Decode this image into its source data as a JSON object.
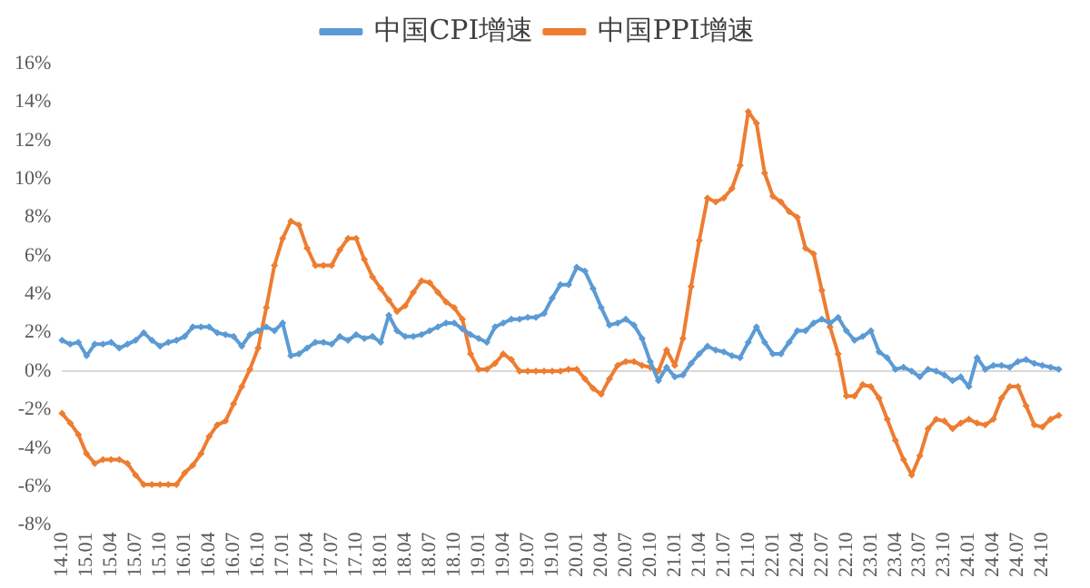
{
  "chart_data": {
    "type": "line",
    "categories": [
      "14.10",
      null,
      null,
      "15.01",
      null,
      null,
      "15.04",
      null,
      null,
      "15.07",
      null,
      null,
      "15.10",
      null,
      null,
      "16.01",
      null,
      null,
      "16.04",
      null,
      null,
      "16.07",
      null,
      null,
      "16.10",
      null,
      null,
      "17.01",
      null,
      null,
      "17.04",
      null,
      null,
      "17.07",
      null,
      null,
      "17.10",
      null,
      null,
      "18.01",
      null,
      null,
      "18.04",
      null,
      null,
      "18.07",
      null,
      null,
      "18.10",
      null,
      null,
      "19.01",
      null,
      null,
      "19.04",
      null,
      null,
      "19.07",
      null,
      null,
      "19.10",
      null,
      null,
      "20.01",
      null,
      null,
      "20.04",
      null,
      null,
      "20.07",
      null,
      null,
      "20.10",
      null,
      null,
      "21.01",
      null,
      null,
      "21.04",
      null,
      null,
      "21.07",
      null,
      null,
      "21.10",
      null,
      null,
      "22.01",
      null,
      null,
      "22.04",
      null,
      null,
      "22.07",
      null,
      null,
      "22.10",
      null,
      null,
      "23.01",
      null,
      null,
      "23.04",
      null,
      null,
      "23.07",
      null,
      null,
      "23.10",
      null,
      null,
      "24.01",
      null,
      null,
      "24.04",
      null,
      null,
      "24.07",
      null,
      null,
      "24.10",
      null,
      null
    ],
    "series": [
      {
        "name": "中国CPI增速",
        "color": "#5b9bd5",
        "values": [
          1.6,
          1.4,
          1.5,
          0.8,
          1.4,
          1.4,
          1.5,
          1.2,
          1.4,
          1.6,
          2.0,
          1.6,
          1.3,
          1.5,
          1.6,
          1.8,
          2.3,
          2.3,
          2.3,
          2.0,
          1.9,
          1.8,
          1.3,
          1.9,
          2.1,
          2.3,
          2.1,
          2.5,
          0.8,
          0.9,
          1.2,
          1.5,
          1.5,
          1.4,
          1.8,
          1.6,
          1.9,
          1.7,
          1.8,
          1.5,
          2.9,
          2.1,
          1.8,
          1.8,
          1.9,
          2.1,
          2.3,
          2.5,
          2.5,
          2.2,
          1.9,
          1.7,
          1.5,
          2.3,
          2.5,
          2.7,
          2.7,
          2.8,
          2.8,
          3.0,
          3.8,
          4.5,
          4.5,
          5.4,
          5.2,
          4.3,
          3.3,
          2.4,
          2.5,
          2.7,
          2.4,
          1.7,
          0.5,
          -0.5,
          0.2,
          -0.3,
          -0.2,
          0.4,
          0.9,
          1.3,
          1.1,
          1.0,
          0.8,
          0.7,
          1.5,
          2.3,
          1.5,
          0.9,
          0.9,
          1.5,
          2.1,
          2.1,
          2.5,
          2.7,
          2.5,
          2.8,
          2.1,
          1.6,
          1.8,
          2.1,
          1.0,
          0.7,
          0.1,
          0.2,
          0.0,
          -0.3,
          0.1,
          0.0,
          -0.2,
          -0.5,
          -0.3,
          -0.8,
          0.7,
          0.1,
          0.3,
          0.3,
          0.2,
          0.5,
          0.6,
          0.4,
          0.3,
          0.2,
          0.1
        ]
      },
      {
        "name": "中国PPI增速",
        "color": "#ed7d31",
        "values": [
          -2.2,
          -2.7,
          -3.3,
          -4.3,
          -4.8,
          -4.6,
          -4.6,
          -4.6,
          -4.8,
          -5.4,
          -5.9,
          -5.9,
          -5.9,
          -5.9,
          -5.9,
          -5.3,
          -4.9,
          -4.3,
          -3.4,
          -2.8,
          -2.6,
          -1.7,
          -0.8,
          0.1,
          1.2,
          3.3,
          5.5,
          6.9,
          7.8,
          7.6,
          6.4,
          5.5,
          5.5,
          5.5,
          6.3,
          6.9,
          6.9,
          5.8,
          4.9,
          4.3,
          3.7,
          3.1,
          3.4,
          4.1,
          4.7,
          4.6,
          4.1,
          3.6,
          3.3,
          2.7,
          0.9,
          0.1,
          0.1,
          0.4,
          0.9,
          0.6,
          0.0,
          0.0,
          0.0,
          0.0,
          0.0,
          0.0,
          0.1,
          0.1,
          -0.4,
          -0.9,
          -1.2,
          -0.4,
          0.3,
          0.5,
          0.5,
          0.3,
          0.2,
          0.0,
          1.1,
          0.3,
          1.7,
          4.4,
          6.8,
          9.0,
          8.8,
          9.0,
          9.5,
          10.7,
          13.5,
          12.9,
          10.3,
          9.1,
          8.8,
          8.3,
          8.0,
          6.4,
          6.1,
          4.2,
          2.3,
          0.9,
          -1.3,
          -1.3,
          -0.7,
          -0.8,
          -1.4,
          -2.5,
          -3.6,
          -4.6,
          -5.4,
          -4.4,
          -3.0,
          -2.5,
          -2.6,
          -3.0,
          -2.7,
          -2.5,
          -2.7,
          -2.8,
          -2.5,
          -1.4,
          -0.8,
          -0.8,
          -1.8,
          -2.8,
          -2.9,
          -2.5,
          -2.3
        ]
      }
    ],
    "ylim": [
      -8,
      16
    ],
    "yticks": [
      {
        "value": -8,
        "label": "-8%"
      },
      {
        "value": -6,
        "label": "-6%"
      },
      {
        "value": -4,
        "label": "-4%"
      },
      {
        "value": -2,
        "label": "-2%"
      },
      {
        "value": 0,
        "label": "0%"
      },
      {
        "value": 2,
        "label": "2%"
      },
      {
        "value": 4,
        "label": "4%"
      },
      {
        "value": 6,
        "label": "6%"
      },
      {
        "value": 8,
        "label": "8%"
      },
      {
        "value": 10,
        "label": "10%"
      },
      {
        "value": 12,
        "label": "12%"
      },
      {
        "value": 14,
        "label": "14%"
      },
      {
        "value": 16,
        "label": "16%"
      }
    ],
    "ref_lines": [
      {
        "axis": "y",
        "value": 0,
        "color": "#d9d9d9"
      }
    ],
    "grid": false,
    "legend": "top",
    "marker": "diamond",
    "line_style": "solid"
  }
}
